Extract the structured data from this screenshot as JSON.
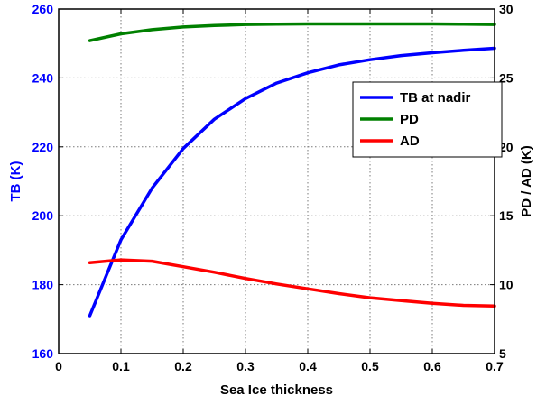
{
  "chart_data": {
    "type": "line",
    "xlabel": "Sea Ice thickness",
    "ylabel_left": "TB (K)",
    "ylabel_right": "PD / AD (K)",
    "xlim": [
      0,
      0.7
    ],
    "ylim_left": [
      160,
      260
    ],
    "ylim_right": [
      5,
      30
    ],
    "xticks": [
      0,
      0.1,
      0.2,
      0.3,
      0.4,
      0.5,
      0.6,
      0.7
    ],
    "yticks_left": [
      160,
      180,
      200,
      220,
      240,
      260
    ],
    "yticks_right": [
      5,
      10,
      15,
      20,
      25,
      30
    ],
    "grid": true,
    "legend_position": "right",
    "x": [
      0.05,
      0.1,
      0.15,
      0.2,
      0.25,
      0.3,
      0.35,
      0.4,
      0.45,
      0.5,
      0.55,
      0.6,
      0.65,
      0.7
    ],
    "series": [
      {
        "name": "TB at nadir",
        "axis": "left",
        "color": "#0000ff",
        "values": [
          171,
          193,
          208,
          219.5,
          228,
          234,
          238.5,
          241.5,
          243.8,
          245.3,
          246.5,
          247.3,
          248,
          248.6
        ]
      },
      {
        "name": "PD",
        "axis": "right",
        "color": "#008000",
        "values": [
          27.7,
          28.2,
          28.5,
          28.7,
          28.8,
          28.88,
          28.9,
          28.92,
          28.92,
          28.92,
          28.92,
          28.92,
          28.9,
          28.88
        ]
      },
      {
        "name": "AD",
        "axis": "right",
        "color": "#ff0000",
        "values": [
          11.6,
          11.8,
          11.7,
          11.3,
          10.9,
          10.45,
          10.05,
          9.7,
          9.35,
          9.05,
          8.85,
          8.65,
          8.5,
          8.45
        ]
      }
    ]
  }
}
